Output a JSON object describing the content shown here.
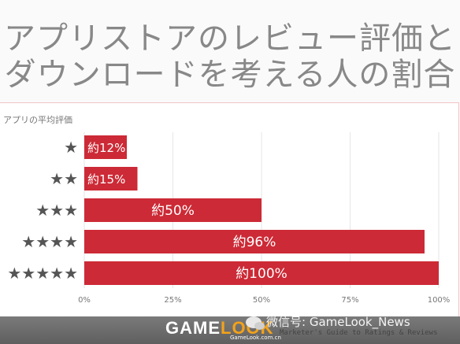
{
  "title": {
    "line1": "アプリストアのレビュー評価と",
    "line2": "ダウンロードを考える人の割合"
  },
  "watermark": {
    "logo_part1": "GAME",
    "logo_part2": "LOOK",
    "logo_sub": "GameLook.com.cn",
    "wechat": "微信号: GameLook_News",
    "source": "Marketer's Guide to Ratings & Reviews"
  },
  "colors": {
    "bar": "#cc2a36",
    "axis_text": "#777777",
    "title": "#888888"
  },
  "chart_data": {
    "type": "bar",
    "orientation": "horizontal",
    "ylabel": "アプリの平均評価",
    "xlabel": "",
    "xlim": [
      0,
      100
    ],
    "categories": [
      "★",
      "★★",
      "★★★",
      "★★★★",
      "★★★★★"
    ],
    "values": [
      12,
      15,
      50,
      96,
      100
    ],
    "value_labels": [
      "約12%",
      "約15%",
      "約50%",
      "約96%",
      "約100%"
    ],
    "xticks": [
      "0%",
      "25%",
      "50%",
      "75%",
      "100%"
    ],
    "xtick_values": [
      0,
      25,
      50,
      75,
      100
    ],
    "grid": true
  }
}
